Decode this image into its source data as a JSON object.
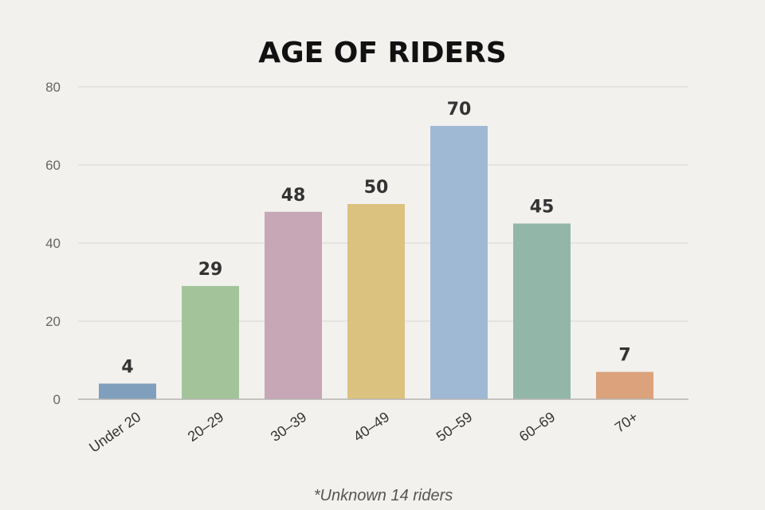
{
  "chart_data": {
    "type": "bar",
    "title": "AGE OF RIDERS",
    "categories": [
      "Under 20",
      "20–29",
      "30–39",
      "40–49",
      "50–59",
      "60–69",
      "70+"
    ],
    "values": [
      4,
      29,
      48,
      50,
      70,
      45,
      7
    ],
    "data_labels": [
      "4",
      "29",
      "48",
      "50",
      "70",
      "45",
      "7"
    ],
    "colors": [
      "#7f9fbd",
      "#a3c49b",
      "#c7a6b6",
      "#dcc27f",
      "#9fb9d5",
      "#92b7a9",
      "#dba27c"
    ],
    "ylim": [
      0,
      80
    ],
    "yticks": [
      0,
      20,
      40,
      60,
      80
    ],
    "ytick_labels": [
      "0",
      "20",
      "40",
      "60",
      "80"
    ],
    "grid": true,
    "legend": "none",
    "footnote": "*Unknown 14 riders"
  }
}
